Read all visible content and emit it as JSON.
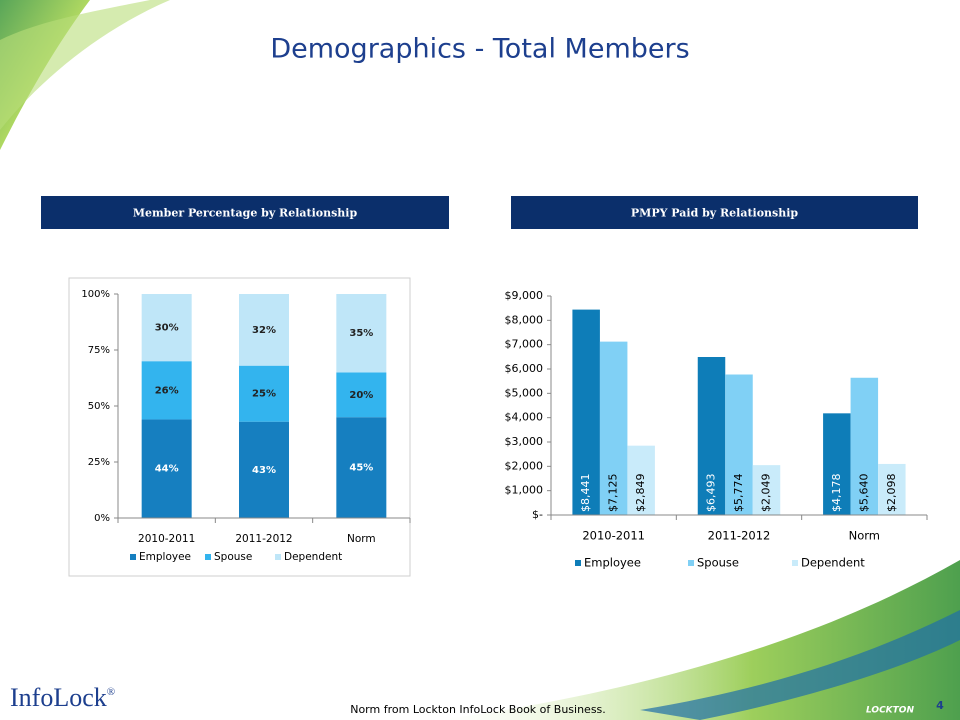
{
  "title": "Demographics - Total Members",
  "footnote": "Norm from Lockton InfoLock Book of Business.",
  "page_number": "4",
  "brand": "InfoLock",
  "brand_mark": "®",
  "company": "LOCKTON",
  "chart_data": [
    {
      "type": "bar",
      "stacked": true,
      "title": "Member Percentage by Relationship",
      "categories": [
        "2010-2011",
        "2011-2012",
        "Norm"
      ],
      "series": [
        {
          "name": "Employee",
          "color": "#167fc0",
          "values": [
            44,
            43,
            45
          ],
          "value_labels": [
            "44%",
            "43%",
            "45%"
          ]
        },
        {
          "name": "Spouse",
          "color": "#33b4ee",
          "values": [
            26,
            25,
            20
          ],
          "value_labels": [
            "26%",
            "25%",
            "20%"
          ]
        },
        {
          "name": "Dependent",
          "color": "#bfe6f8",
          "values": [
            30,
            32,
            35
          ],
          "value_labels": [
            "30%",
            "32%",
            "35%"
          ]
        }
      ],
      "ylim": [
        0,
        100
      ],
      "yticks": [
        {
          "value": 0,
          "label": "0%"
        },
        {
          "value": 25,
          "label": "25%"
        },
        {
          "value": 50,
          "label": "50%"
        },
        {
          "value": 75,
          "label": "75%"
        },
        {
          "value": 100,
          "label": "100%"
        }
      ],
      "grid": false,
      "legend": "bottom"
    },
    {
      "type": "bar",
      "stacked": false,
      "title": "PMPY Paid by Relationship",
      "categories": [
        "2010-2011",
        "2011-2012",
        "Norm"
      ],
      "series": [
        {
          "name": "Employee",
          "color": "#0e7db8",
          "values": [
            8441,
            6493,
            4178
          ],
          "value_labels": [
            "$8,441",
            "$6,493",
            "$4,178"
          ]
        },
        {
          "name": "Spouse",
          "color": "#80d0f5",
          "values": [
            7125,
            5774,
            5640
          ],
          "value_labels": [
            "$7,125",
            "$5,774",
            "$5,640"
          ]
        },
        {
          "name": "Dependent",
          "color": "#c9ebfa",
          "values": [
            2849,
            2049,
            2098
          ],
          "value_labels": [
            "$2,849",
            "$2,049",
            "$2,098"
          ]
        }
      ],
      "ylim": [
        0,
        9000
      ],
      "yticks": [
        {
          "value": 0,
          "label": "$-"
        },
        {
          "value": 1000,
          "label": "$1,000"
        },
        {
          "value": 2000,
          "label": "$2,000"
        },
        {
          "value": 3000,
          "label": "$3,000"
        },
        {
          "value": 4000,
          "label": "$4,000"
        },
        {
          "value": 5000,
          "label": "$5,000"
        },
        {
          "value": 6000,
          "label": "$6,000"
        },
        {
          "value": 7000,
          "label": "$7,000"
        },
        {
          "value": 8000,
          "label": "$8,000"
        },
        {
          "value": 9000,
          "label": "$9,000"
        }
      ],
      "grid": false,
      "legend": "bottom"
    }
  ]
}
